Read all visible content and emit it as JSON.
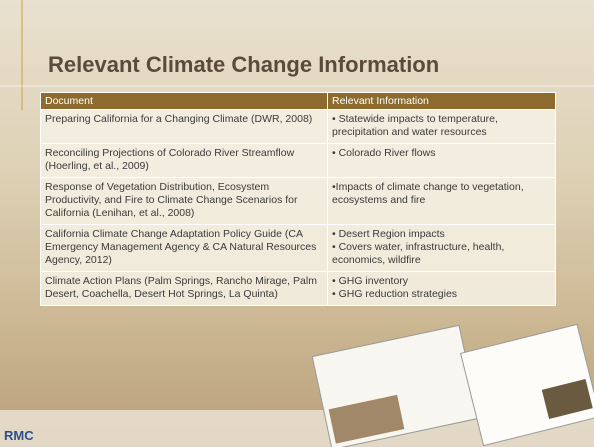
{
  "title": "Relevant Climate Change Information",
  "table": {
    "header": [
      "Document",
      "Relevant Information"
    ],
    "rows": [
      [
        "Preparing California for a Changing Climate (DWR, 2008)",
        [
          "• Statewide impacts to temperature, precipitation and water resources"
        ]
      ],
      [
        "Reconciling Projections of Colorado River Streamflow (Hoerling, et al., 2009)",
        [
          "• Colorado River flows"
        ]
      ],
      [
        "Response of Vegetation Distribution, Ecosystem Productivity, and Fire to Climate Change Scenarios for California (Lenihan, et al., 2008)",
        [
          "•Impacts of climate change to vegetation, ecosystems and fire"
        ]
      ],
      [
        "California Climate Change Adaptation Policy Guide (CA Emergency Management Agency & CA Natural Resources Agency, 2012)",
        [
          "• Desert Region impacts",
          "• Covers water, infrastructure, health, economics, wildfire"
        ]
      ],
      [
        "Climate Action Plans (Palm Springs, Rancho Mirage, Palm Desert, Coachella, Desert Hot Springs, La Quinta)",
        [
          "• GHG inventory",
          "• GHG reduction strategies"
        ]
      ]
    ]
  },
  "logo": "RMC"
}
